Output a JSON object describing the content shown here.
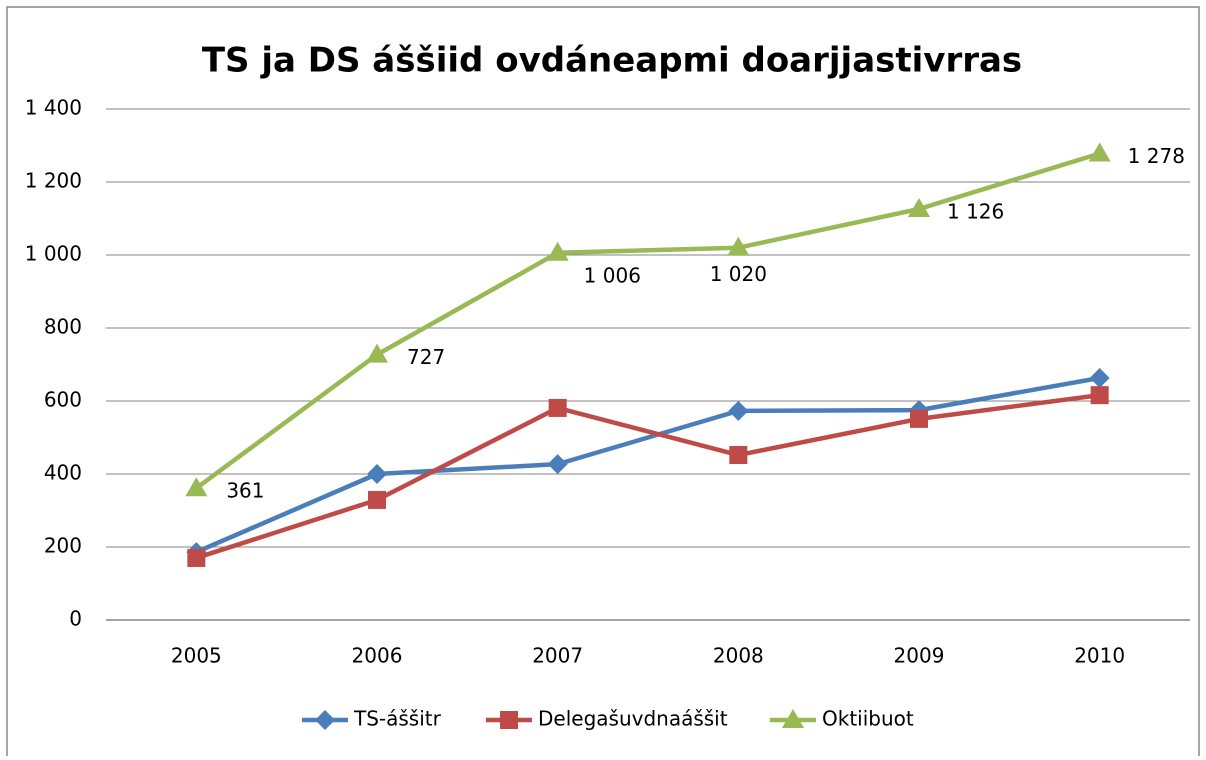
{
  "chart_data": {
    "type": "line",
    "title": "TS ja DS áššiid ovdáneapmi doarjjastivrras",
    "categories": [
      "2005",
      "2006",
      "2007",
      "2008",
      "2009",
      "2010"
    ],
    "series": [
      {
        "name": "TS-áššitr",
        "color": "#4a7ebb",
        "marker": "diamond",
        "values": [
          186,
          400,
          427,
          573,
          575,
          663
        ]
      },
      {
        "name": "Delegašuvdnaáššit",
        "color": "#be4b48",
        "marker": "square",
        "values": [
          170,
          329,
          581,
          452,
          551,
          616
        ]
      },
      {
        "name": "Oktiibuot",
        "color": "#98b954",
        "marker": "triangle",
        "values": [
          361,
          727,
          1006,
          1020,
          1126,
          1278
        ],
        "value_labels": [
          "361",
          "727",
          "1 006",
          "1 020",
          "1 126",
          "1 278"
        ]
      }
    ],
    "ylim": [
      0,
      1400
    ],
    "yticks": [
      0,
      200,
      400,
      600,
      800,
      {
        "value": 1000,
        "label": "1 000"
      },
      {
        "value": 1200,
        "label": "1 200"
      },
      {
        "value": 1400,
        "label": "1 400"
      }
    ],
    "grid": true,
    "legend": "bottom"
  }
}
